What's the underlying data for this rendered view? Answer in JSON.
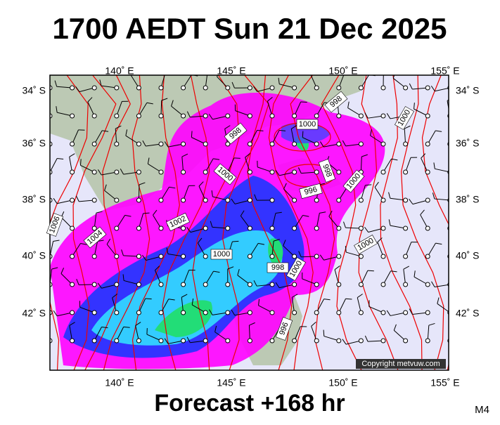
{
  "title": "1700 AEDT Sun 21 Dec 2025",
  "footer": "Forecast +168 hr",
  "model": "M4",
  "copyright": "Copyright metvuw.com",
  "axes": {
    "top": [
      "140˚ E",
      "145˚ E",
      "150˚ E",
      "155˚ E"
    ],
    "bottom": [
      "140˚ E",
      "145˚ E",
      "150˚ E",
      "155˚ E"
    ],
    "left": [
      "34˚ S",
      "36˚ S",
      "38˚ S",
      "40˚ S",
      "42˚ S"
    ],
    "right": [
      "34˚ S",
      "36˚ S",
      "38˚ S",
      "40˚ S",
      "42˚ S"
    ]
  },
  "contour_labels": [
    "998",
    "1000",
    "998",
    "1000",
    "1000",
    "998",
    "996",
    "1000",
    "1002",
    "1004",
    "1006",
    "1000",
    "998",
    "1000",
    "1000",
    "996"
  ]
}
